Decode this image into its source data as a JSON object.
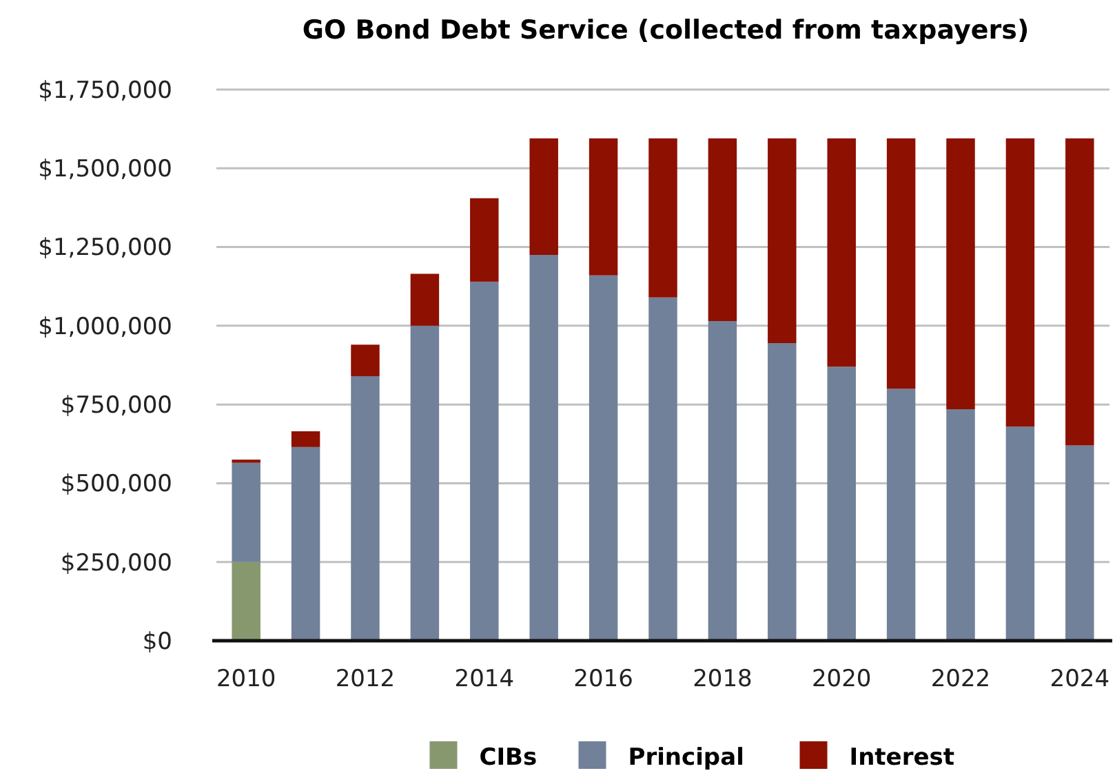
{
  "chart_data": {
    "type": "bar",
    "title": "GO Bond Debt Service (collected from taxpayers)",
    "stacked": true,
    "categories": [
      "2010",
      null,
      "2012",
      null,
      "2014",
      null,
      "2016",
      null,
      "2018",
      null,
      "2020",
      null,
      "2022",
      null,
      "2024"
    ],
    "series": [
      {
        "name": "CIBs",
        "color": "#87986f",
        "values": [
          250000,
          0,
          0,
          0,
          0,
          0,
          0,
          0,
          0,
          0,
          0,
          0,
          0,
          0,
          0
        ]
      },
      {
        "name": "Principal",
        "color": "#718199",
        "values": [
          315000,
          615000,
          840000,
          1000000,
          1140000,
          1225000,
          1160000,
          1090000,
          1015000,
          945000,
          870000,
          800000,
          735000,
          680000,
          620000
        ]
      },
      {
        "name": "Interest",
        "color": "#8e1000",
        "values": [
          10000,
          50000,
          100000,
          165000,
          265000,
          370000,
          435000,
          505000,
          580000,
          650000,
          725000,
          795000,
          860000,
          915000,
          975000
        ]
      }
    ],
    "ylim": [
      0,
      1750000
    ],
    "yticks": [
      {
        "value": 0,
        "label": "$0"
      },
      {
        "value": 250000,
        "label": "$250,000"
      },
      {
        "value": 500000,
        "label": "$500,000"
      },
      {
        "value": 750000,
        "label": "$750,000"
      },
      {
        "value": 1000000,
        "label": "$1,000,000"
      },
      {
        "value": 1250000,
        "label": "$1,250,000"
      },
      {
        "value": 1500000,
        "label": "$1,500,000"
      },
      {
        "value": 1750000,
        "label": "$1,750,000"
      }
    ],
    "grid": "y",
    "legend": "bottom"
  }
}
